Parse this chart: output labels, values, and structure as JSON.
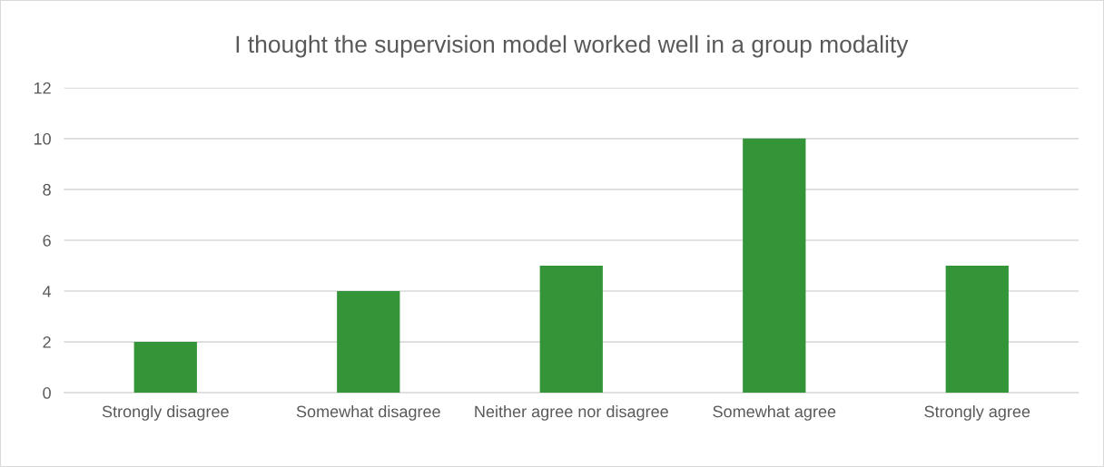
{
  "chart_data": {
    "type": "bar",
    "title": "I thought the supervision model worked well in a group modality",
    "categories": [
      "Strongly disagree",
      "Somewhat disagree",
      "Neither agree nor disagree",
      "Somewhat agree",
      "Strongly agree"
    ],
    "values": [
      2,
      4,
      5,
      10,
      5
    ],
    "color": "#339438",
    "ylim": [
      0,
      12
    ],
    "yticks": [
      0,
      2,
      4,
      6,
      8,
      10,
      12
    ],
    "grid": "y",
    "legend": false
  }
}
